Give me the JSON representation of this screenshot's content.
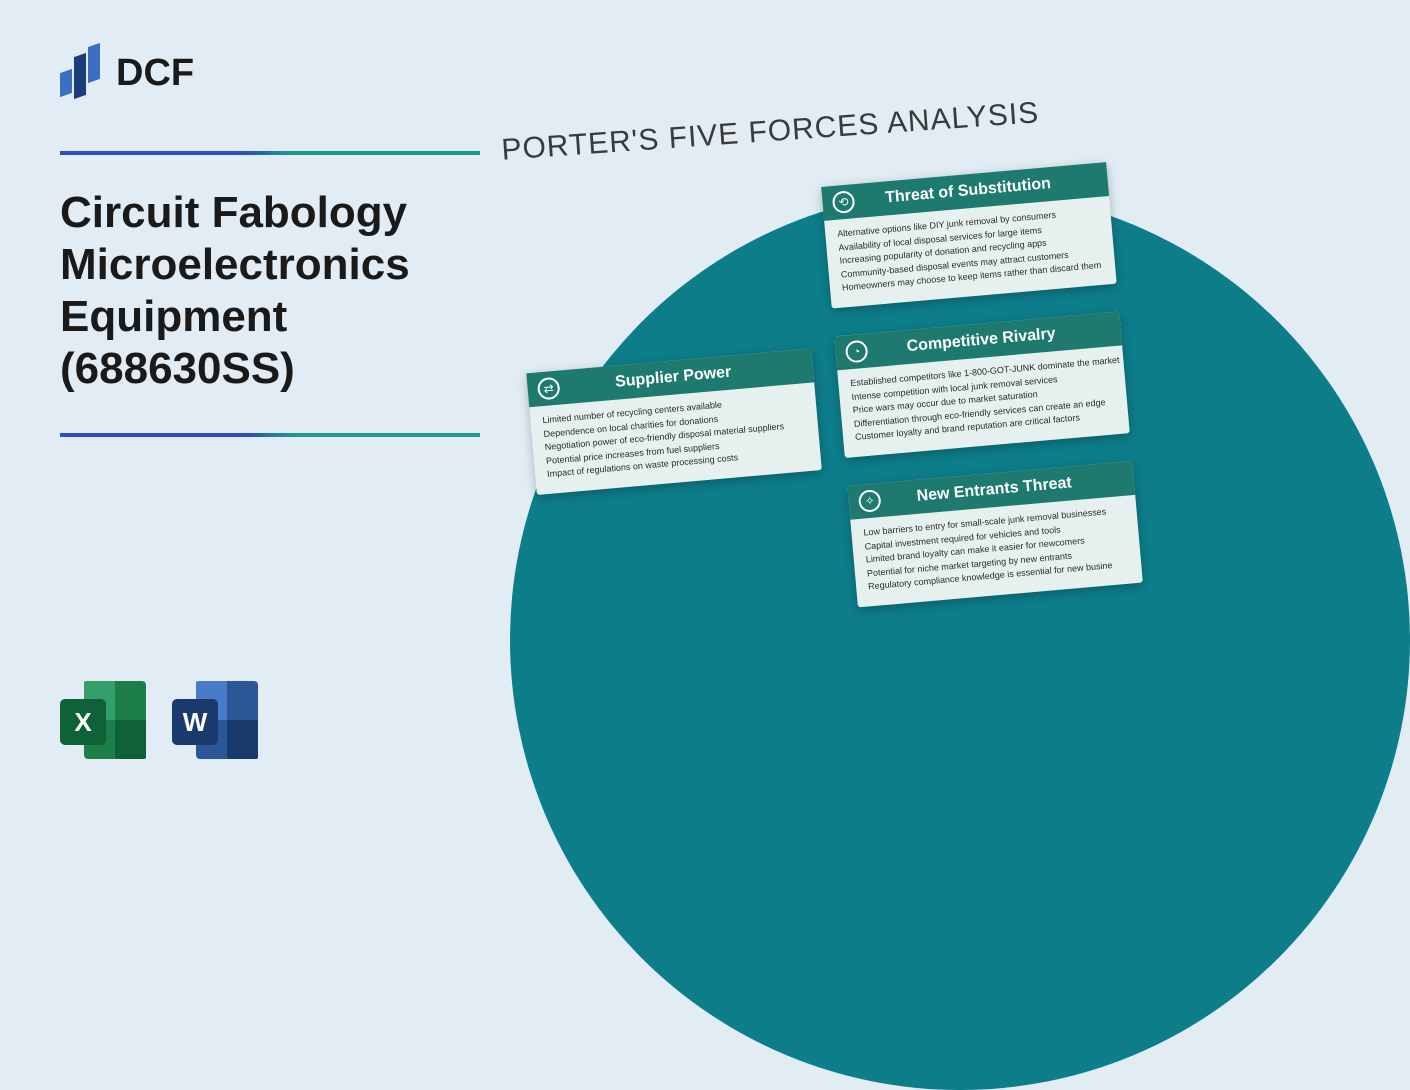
{
  "logo_text": "DCF",
  "title": "Circuit Fabology Microelectronics Equipment (688630SS)",
  "analysis_title": "PORTER'S FIVE FORCES ANALYSIS",
  "icons": {
    "excel_letter": "X",
    "word_letter": "W"
  },
  "colors": {
    "page_bg": "#e1ecf4",
    "circle_bg": "#0d7d8a",
    "card_header_bg": "#1e7a6e",
    "card_body_bg": "#e6f1ef",
    "hr_blue": "#2d4ec0",
    "hr_teal": "#1a9b8e"
  },
  "cards": {
    "supplier": {
      "title": "Supplier Power",
      "lines": [
        "Limited number of recycling centers available",
        "Dependence on local charities for donations",
        "Negotiation power of eco-friendly disposal material suppliers",
        "Potential price increases from fuel suppliers",
        "Impact of regulations on waste processing costs"
      ]
    },
    "threat": {
      "title": "Threat of Substitution",
      "lines": [
        "Alternative options like DIY junk removal by consumers",
        "Availability of local disposal services for large items",
        "Increasing popularity of donation and recycling apps",
        "Community-based disposal events may attract customers",
        "Homeowners may choose to keep items rather than discard them"
      ]
    },
    "rivalry": {
      "title": "Competitive Rivalry",
      "lines": [
        "Established competitors like 1-800-GOT-JUNK dominate the market",
        "Intense competition with local junk removal services",
        "Price wars may occur due to market saturation",
        "Differentiation through eco-friendly services can create an edge",
        "Customer loyalty and brand reputation are critical factors"
      ]
    },
    "entrants": {
      "title": "New Entrants Threat",
      "lines": [
        "Low barriers to entry for small-scale junk removal businesses",
        "Capital investment required for vehicles and tools",
        "Limited brand loyalty can make it easier for newcomers",
        "Potential for niche market targeting by new entrants",
        "Regulatory compliance knowledge is essential for new busine"
      ]
    }
  }
}
